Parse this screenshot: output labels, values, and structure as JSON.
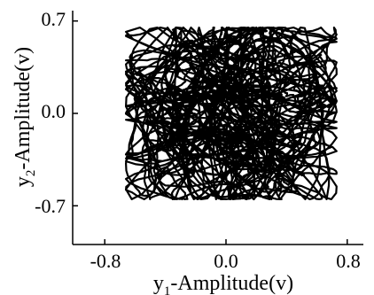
{
  "chart_data": {
    "type": "line",
    "title": "",
    "xlabel": {
      "base": "y",
      "sub": "1",
      "rest": "-Amplitude(v)"
    },
    "ylabel": {
      "base": "y",
      "sub": "2",
      "rest": "-Amplitude(v)"
    },
    "xlim": [
      -0.9,
      0.9
    ],
    "ylim": [
      -0.9,
      0.9
    ],
    "xticks": [
      -0.8,
      0.0,
      0.8
    ],
    "xtick_labels": [
      "-0.8",
      "0.0",
      "0.8"
    ],
    "yticks": [
      -0.7,
      0.0,
      0.7
    ],
    "ytick_labels": [
      "-0.7",
      "0.0",
      "0.7"
    ],
    "grid": false,
    "legend": "none",
    "series": [
      {
        "style": "chaotic attractor trajectory (phase portrait)",
        "color": "#000000",
        "x_range": [
          -0.66,
          0.73
        ],
        "y_range": [
          -0.65,
          0.65
        ]
      }
    ]
  }
}
